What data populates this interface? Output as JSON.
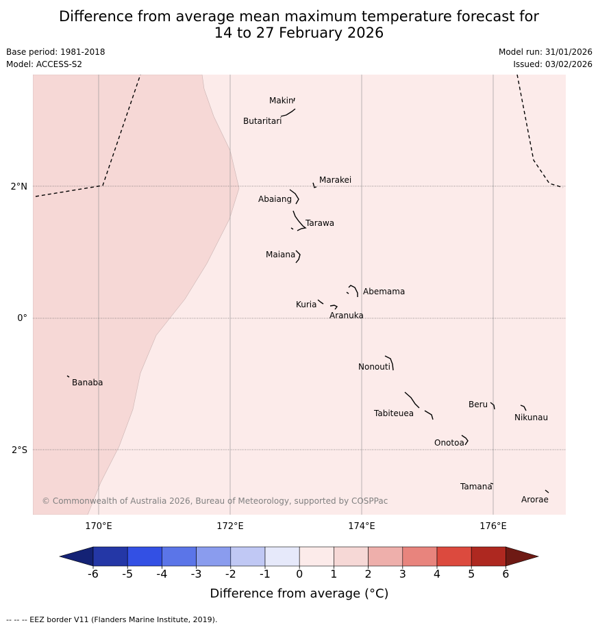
{
  "title": {
    "line1": "Difference from average mean maximum temperature forecast for",
    "line2": "14 to 27 February 2026"
  },
  "meta": {
    "base_period": "Base period: 1981-2018",
    "model": "Model: ACCESS-S2",
    "model_run": "Model run: 31/01/2026",
    "issued": "Issued: 03/02/2026"
  },
  "map": {
    "copyright": "© Commonwealth of Australia 2026, Bureau of Meteorology, supported by COSPPac",
    "lat_labels": [
      "2°N",
      "0°",
      "2°S"
    ],
    "lon_labels": [
      "170°E",
      "172°E",
      "174°E",
      "176°E"
    ],
    "places": [
      "Makin",
      "Butaritari",
      "Marakei",
      "Abaiang",
      "Tarawa",
      "Maiana",
      "Abemama",
      "Kuria",
      "Aranuka",
      "Banaba",
      "Nonouti",
      "Beru",
      "Nikunau",
      "Tabiteuea",
      "Onotoa",
      "Tamana",
      "Arorae"
    ],
    "fill_colors": {
      "band_0_to_1": "#fcebea",
      "band_1_to_2": "#f6d8d6"
    }
  },
  "colorbar": {
    "ticks": [
      "-6",
      "-5",
      "-4",
      "-3",
      "-2",
      "-1",
      "0",
      "1",
      "2",
      "3",
      "4",
      "5",
      "6"
    ],
    "colors": [
      "#2437a6",
      "#3350e4",
      "#5b75e8",
      "#8a9cee",
      "#c0c8f4",
      "#e6e9fa",
      "#fcebea",
      "#f6d8d6",
      "#eeafab",
      "#e8847d",
      "#dc4a3e",
      "#ae2820"
    ],
    "low_extend_color": "#142275",
    "high_extend_color": "#6e1a14",
    "label": "Difference from average (°C)"
  },
  "footer": "-- -- -- EEZ border V11 (Flanders Marine Institute, 2019)."
}
